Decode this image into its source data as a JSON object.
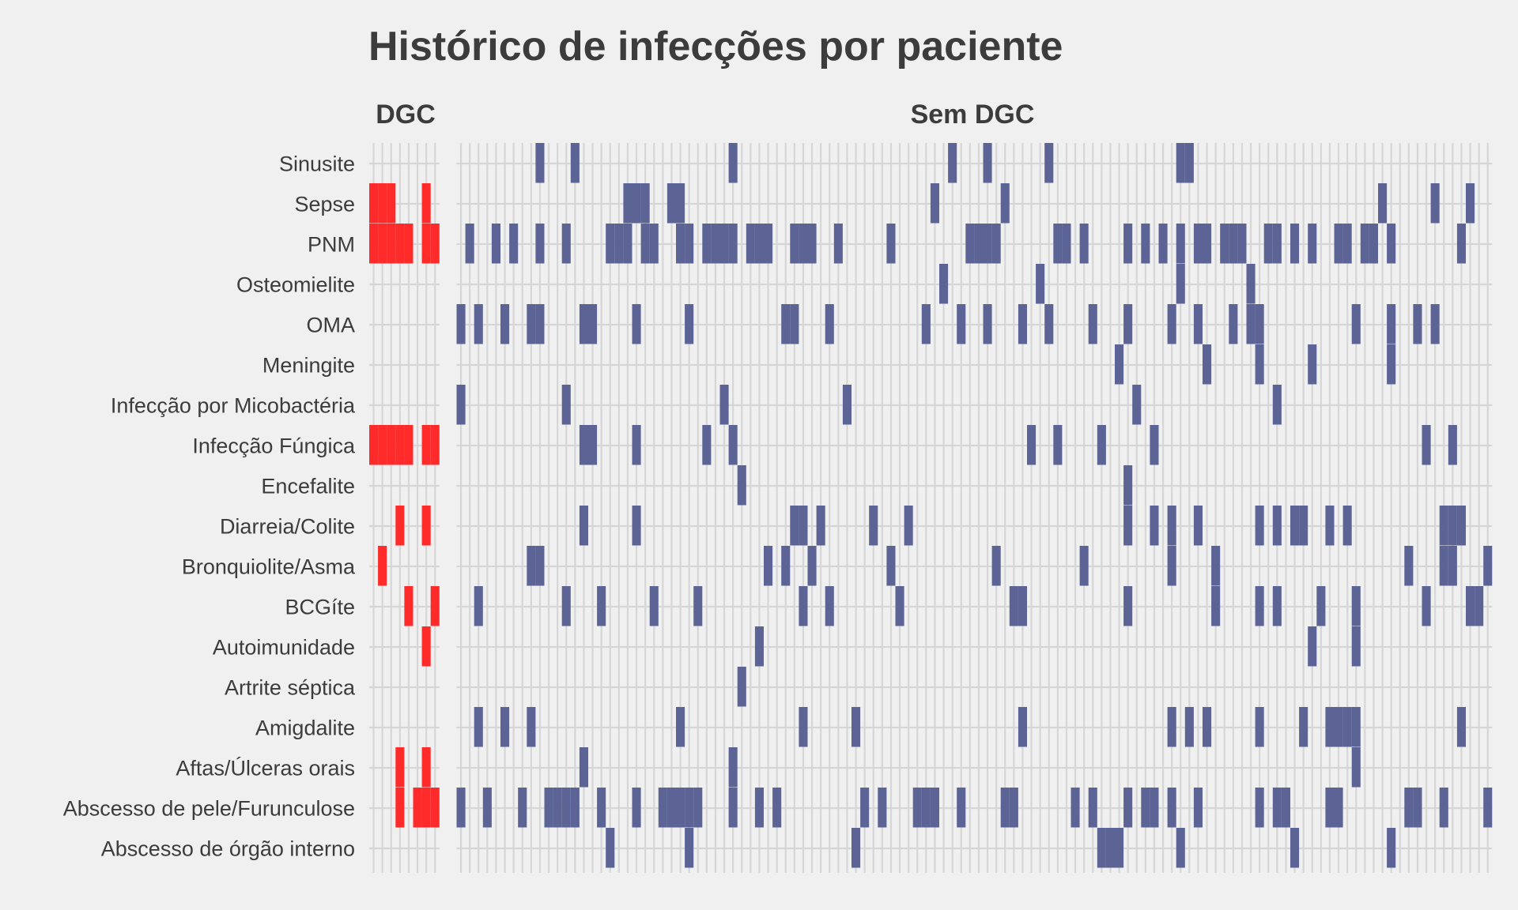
{
  "chart_data": {
    "type": "heatmap",
    "title": "Histórico de infecções por paciente",
    "xlabel": "",
    "ylabel": "",
    "grid": true,
    "legend": "none",
    "categories": [
      "Sinusite",
      "Sepse",
      "PNM",
      "Osteomielite",
      "OMA",
      "Meningite",
      "Infecção por Micobactéria",
      "Infecção Fúngica",
      "Encefalite",
      "Diarreia/Colite",
      "Bronquiolite/Asma",
      "BCGíte",
      "Autoimunidade",
      "Artrite séptica",
      "Amigdalite",
      "Aftas/Úlceras orais",
      "Abscesso de pele/Furunculose",
      "Abscesso de órgão interno"
    ],
    "panels": [
      {
        "name": "DGC",
        "color": "#ff2a2a",
        "n_patients": 8,
        "series": [
          {
            "category": "Sinusite",
            "patients": []
          },
          {
            "category": "Sepse",
            "patients": [
              1,
              2,
              3,
              7
            ]
          },
          {
            "category": "PNM",
            "patients": [
              1,
              2,
              3,
              4,
              5,
              7,
              8
            ]
          },
          {
            "category": "Osteomielite",
            "patients": []
          },
          {
            "category": "OMA",
            "patients": []
          },
          {
            "category": "Meningite",
            "patients": []
          },
          {
            "category": "Infecção por Micobactéria",
            "patients": []
          },
          {
            "category": "Infecção Fúngica",
            "patients": [
              1,
              2,
              3,
              4,
              5,
              7,
              8
            ]
          },
          {
            "category": "Encefalite",
            "patients": []
          },
          {
            "category": "Diarreia/Colite",
            "patients": [
              4,
              7
            ]
          },
          {
            "category": "Bronquiolite/Asma",
            "patients": [
              2
            ]
          },
          {
            "category": "BCGíte",
            "patients": [
              5,
              8
            ]
          },
          {
            "category": "Autoimunidade",
            "patients": [
              7
            ]
          },
          {
            "category": "Artrite séptica",
            "patients": []
          },
          {
            "category": "Amigdalite",
            "patients": []
          },
          {
            "category": "Aftas/Úlceras orais",
            "patients": [
              4,
              7
            ]
          },
          {
            "category": "Abscesso de pele/Furunculose",
            "patients": [
              4,
              6,
              7,
              8
            ]
          },
          {
            "category": "Abscesso de órgão interno",
            "patients": []
          }
        ]
      },
      {
        "name": "Sem DGC",
        "color": "#5c6495",
        "n_patients": 118,
        "series": [
          {
            "category": "Sinusite",
            "patients": [
              10,
              14,
              32,
              57,
              61,
              68,
              83,
              84
            ]
          },
          {
            "category": "Sepse",
            "patients": [
              20,
              21,
              22,
              25,
              26,
              55,
              63,
              106,
              112,
              116
            ]
          },
          {
            "category": "PNM",
            "patients": [
              2,
              5,
              7,
              10,
              13,
              18,
              19,
              20,
              22,
              23,
              26,
              27,
              29,
              30,
              31,
              32,
              34,
              35,
              36,
              39,
              40,
              41,
              44,
              50,
              59,
              60,
              61,
              62,
              69,
              70,
              72,
              77,
              79,
              81,
              83,
              85,
              86,
              88,
              89,
              90,
              93,
              94,
              96,
              98,
              101,
              102,
              104,
              105,
              107,
              115
            ]
          },
          {
            "category": "Osteomielite",
            "patients": [
              56,
              67,
              83,
              91
            ]
          },
          {
            "category": "OMA",
            "patients": [
              1,
              3,
              6,
              9,
              10,
              15,
              16,
              21,
              27,
              38,
              39,
              43,
              54,
              58,
              61,
              65,
              68,
              73,
              77,
              82,
              85,
              89,
              91,
              92,
              103,
              107,
              110,
              112
            ]
          },
          {
            "category": "Meningite",
            "patients": [
              76,
              86,
              92,
              98,
              107
            ]
          },
          {
            "category": "Infecção por Micobactéria",
            "patients": [
              1,
              13,
              31,
              45,
              78,
              94
            ]
          },
          {
            "category": "Infecção Fúngica",
            "patients": [
              15,
              16,
              21,
              29,
              32,
              66,
              69,
              74,
              80,
              111,
              114
            ]
          },
          {
            "category": "Encefalite",
            "patients": [
              33,
              77
            ]
          },
          {
            "category": "Diarreia/Colite",
            "patients": [
              15,
              21,
              39,
              40,
              42,
              48,
              52,
              77,
              80,
              82,
              85,
              92,
              94,
              96,
              97,
              100,
              102,
              113,
              114,
              115
            ]
          },
          {
            "category": "Bronquiolite/Asma",
            "patients": [
              9,
              10,
              36,
              38,
              41,
              50,
              62,
              72,
              82,
              87,
              109,
              113,
              114,
              118
            ]
          },
          {
            "category": "BCGíte",
            "patients": [
              3,
              13,
              17,
              23,
              28,
              40,
              43,
              51,
              64,
              65,
              77,
              87,
              92,
              94,
              99,
              103,
              111,
              116,
              117
            ]
          },
          {
            "category": "Autoimunidade",
            "patients": [
              35,
              98,
              103
            ]
          },
          {
            "category": "Artrite séptica",
            "patients": [
              33
            ]
          },
          {
            "category": "Amigdalite",
            "patients": [
              3,
              6,
              9,
              26,
              40,
              46,
              65,
              82,
              84,
              86,
              92,
              97,
              100,
              101,
              102,
              103,
              115
            ]
          },
          {
            "category": "Aftas/Úlceras orais",
            "patients": [
              15,
              32,
              103
            ]
          },
          {
            "category": "Abscesso de pele/Furunculose",
            "patients": [
              1,
              4,
              8,
              11,
              12,
              13,
              14,
              17,
              21,
              24,
              25,
              26,
              27,
              28,
              32,
              35,
              37,
              47,
              49,
              53,
              54,
              55,
              58,
              63,
              64,
              71,
              73,
              77,
              79,
              80,
              82,
              85,
              92,
              94,
              95,
              100,
              101,
              109,
              110,
              113,
              118
            ]
          },
          {
            "category": "Abscesso de órgão interno",
            "patients": [
              18,
              27,
              46,
              74,
              75,
              76,
              83,
              96,
              107
            ]
          }
        ]
      }
    ]
  }
}
